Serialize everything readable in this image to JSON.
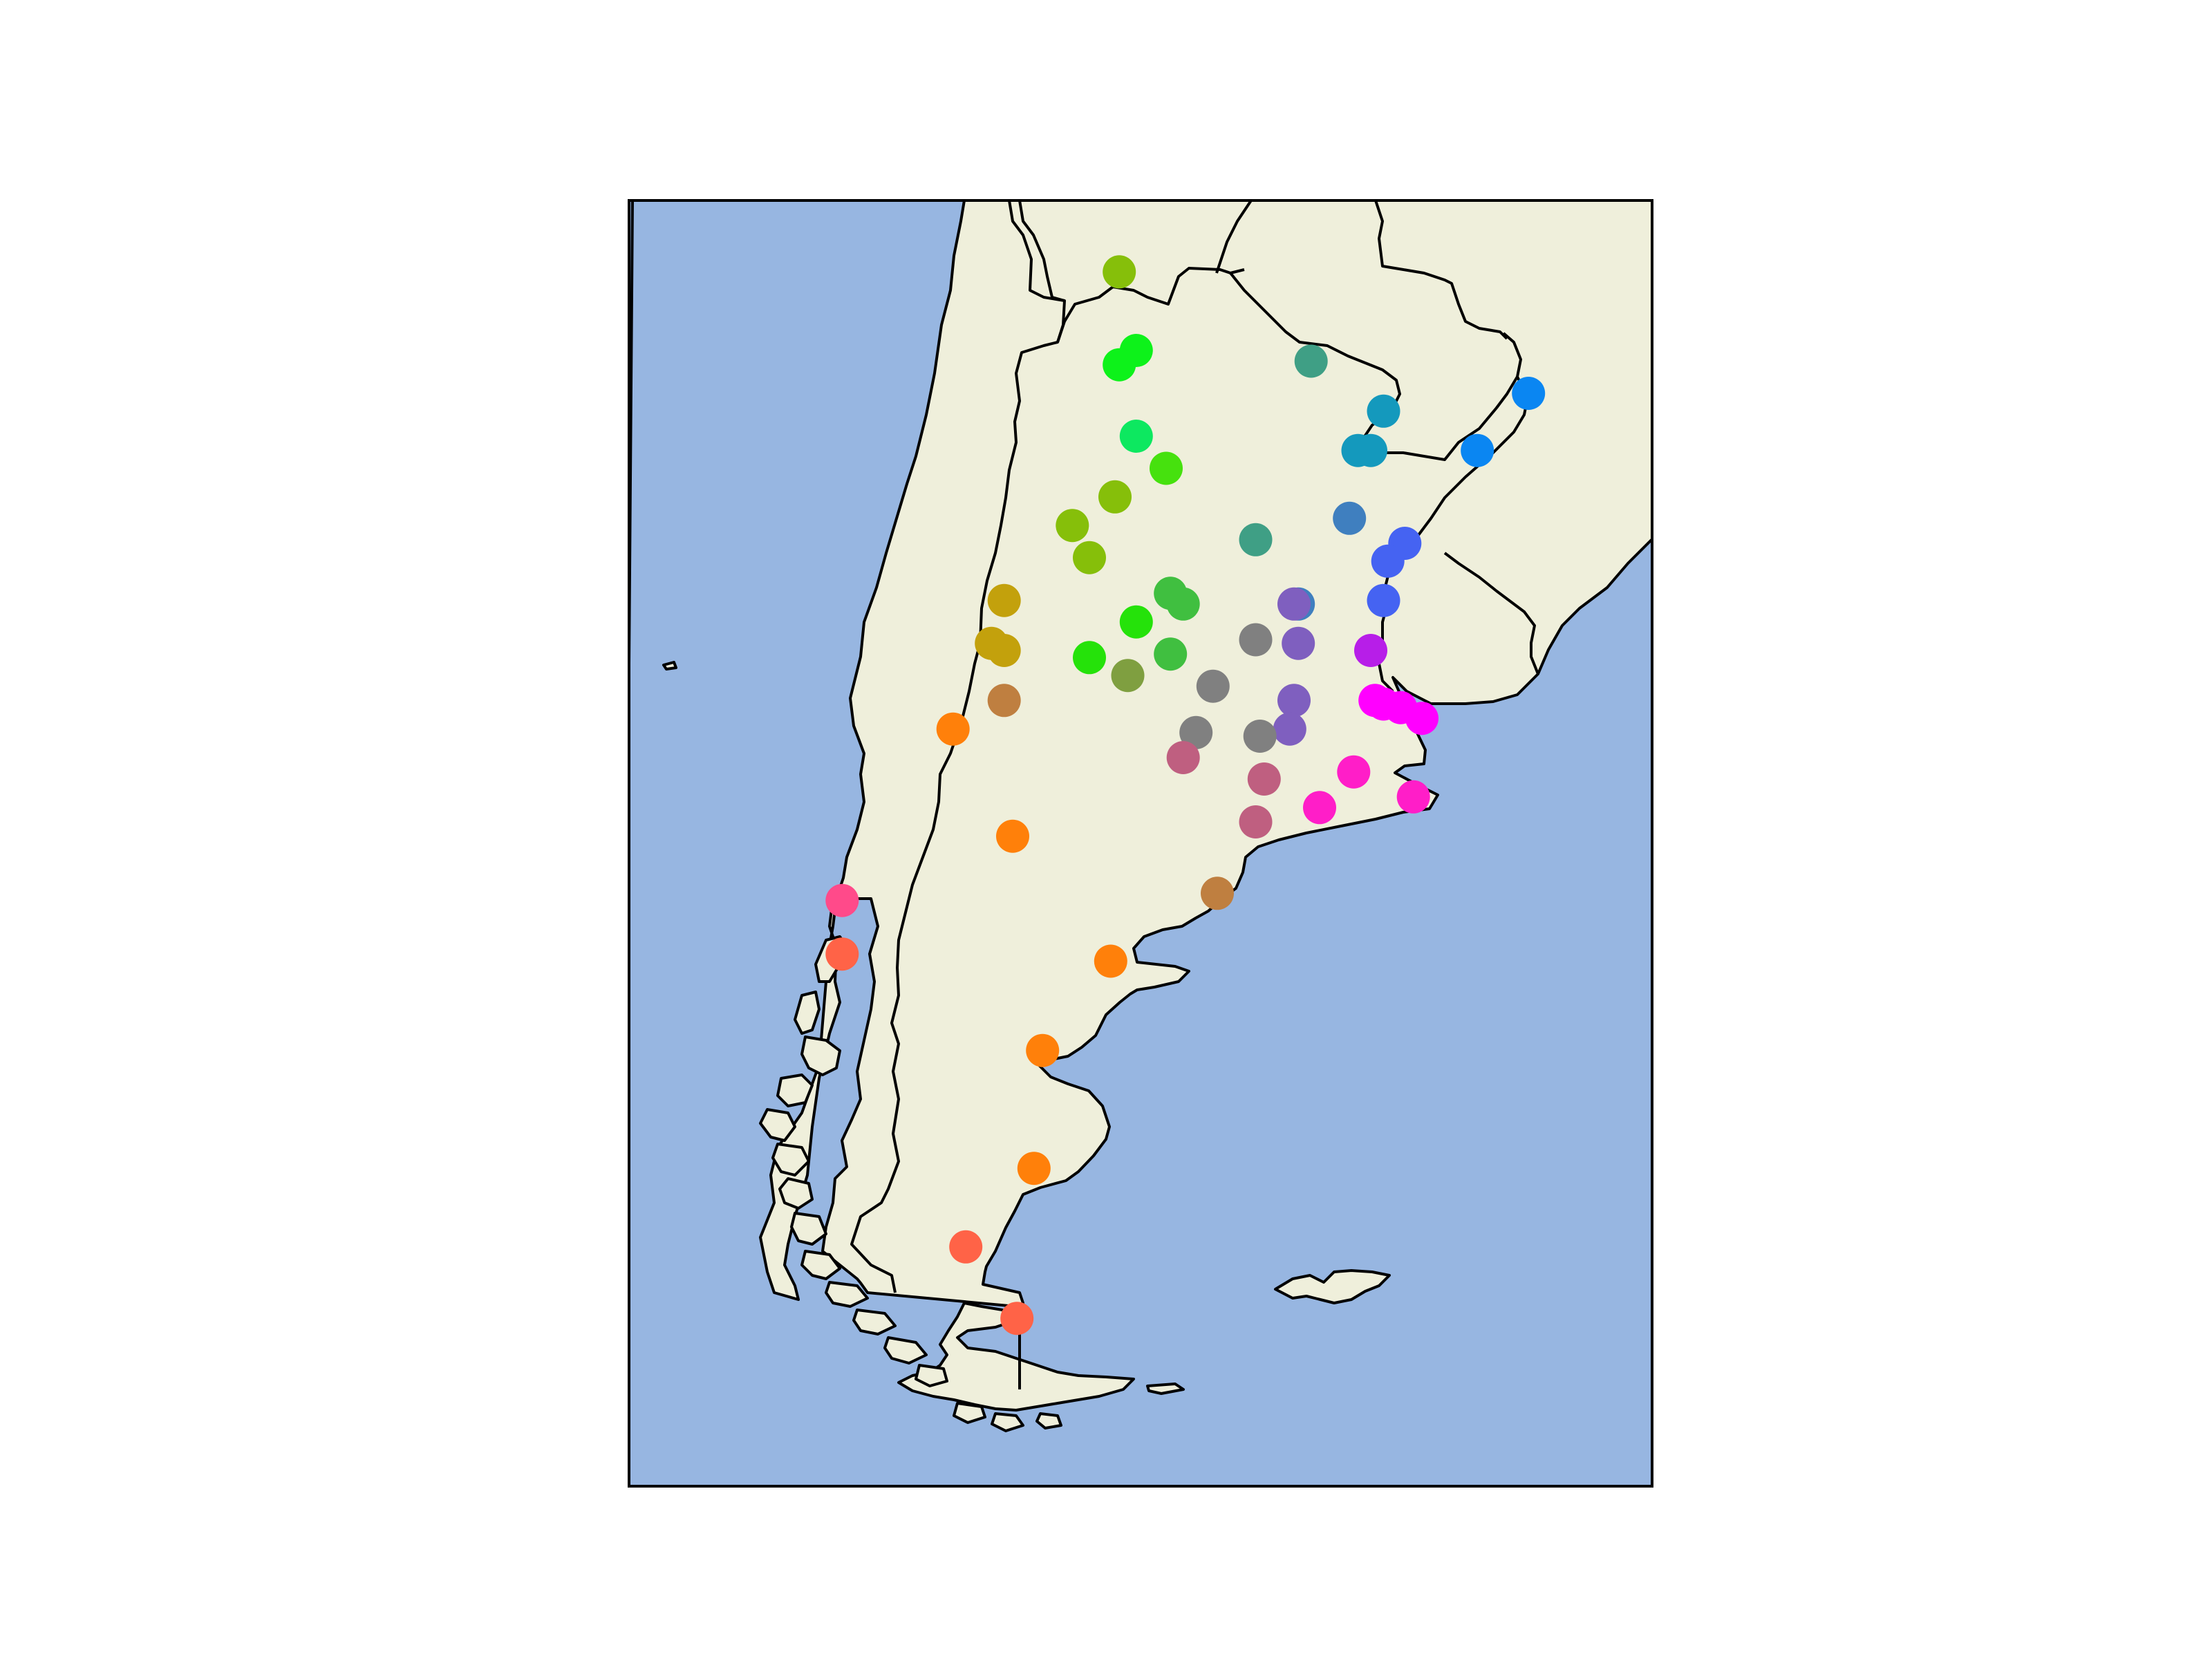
{
  "map": {
    "projection": "PlateCarree",
    "extent_lon": [
      -76,
      -52
    ],
    "extent_lat": [
      -57,
      -21
    ],
    "colors": {
      "ocean": "#97b6e1",
      "land": "#efefdb",
      "coastline": "#000000",
      "frame": "#000000"
    },
    "stations": [
      {
        "lon": -64.5,
        "lat": -23.0,
        "color": "#86bf0a"
      },
      {
        "lon": -64.1,
        "lat": -25.2,
        "color": "#0df21a"
      },
      {
        "lon": -64.5,
        "lat": -25.6,
        "color": "#0df21a"
      },
      {
        "lon": -60.0,
        "lat": -25.5,
        "color": "#3f9f85"
      },
      {
        "lon": -64.1,
        "lat": -27.6,
        "color": "#0de860"
      },
      {
        "lon": -63.4,
        "lat": -28.5,
        "color": "#46e10e"
      },
      {
        "lon": -64.6,
        "lat": -29.3,
        "color": "#86bf0a"
      },
      {
        "lon": -65.6,
        "lat": -30.1,
        "color": "#86bf0a"
      },
      {
        "lon": -65.2,
        "lat": -31.0,
        "color": "#86bf0a"
      },
      {
        "lon": -61.3,
        "lat": -30.5,
        "color": "#3f9f85"
      },
      {
        "lon": -58.3,
        "lat": -26.9,
        "color": "#1499bd"
      },
      {
        "lon": -58.6,
        "lat": -28.0,
        "color": "#1499bd"
      },
      {
        "lon": -58.9,
        "lat": -28.0,
        "color": "#1499bd"
      },
      {
        "lon": -56.1,
        "lat": -28.0,
        "color": "#0a86f2"
      },
      {
        "lon": -54.9,
        "lat": -26.4,
        "color": "#0a86f2"
      },
      {
        "lon": -59.1,
        "lat": -29.9,
        "color": "#3f7fbf"
      },
      {
        "lon": -57.8,
        "lat": -30.6,
        "color": "#4563f2"
      },
      {
        "lon": -58.2,
        "lat": -31.1,
        "color": "#4563f2"
      },
      {
        "lon": -58.3,
        "lat": -32.2,
        "color": "#4563f2"
      },
      {
        "lon": -67.2,
        "lat": -32.2,
        "color": "#c3a10c"
      },
      {
        "lon": -67.5,
        "lat": -33.4,
        "color": "#c3a10c"
      },
      {
        "lon": -67.2,
        "lat": -33.6,
        "color": "#c3a10c"
      },
      {
        "lon": -64.1,
        "lat": -32.8,
        "color": "#25e20a"
      },
      {
        "lon": -63.3,
        "lat": -32.0,
        "color": "#40bf40"
      },
      {
        "lon": -63.0,
        "lat": -32.3,
        "color": "#40bf40"
      },
      {
        "lon": -63.3,
        "lat": -33.7,
        "color": "#40bf40"
      },
      {
        "lon": -65.2,
        "lat": -33.8,
        "color": "#25e20a"
      },
      {
        "lon": -64.3,
        "lat": -34.3,
        "color": "#7f9f40"
      },
      {
        "lon": -61.3,
        "lat": -33.3,
        "color": "#808080"
      },
      {
        "lon": -60.3,
        "lat": -32.3,
        "color": "#3f7fbf"
      },
      {
        "lon": -60.4,
        "lat": -32.3,
        "color": "#7f5fbf"
      },
      {
        "lon": -60.3,
        "lat": -33.4,
        "color": "#7f5fbf"
      },
      {
        "lon": -58.6,
        "lat": -33.6,
        "color": "#b71ee8"
      },
      {
        "lon": -67.2,
        "lat": -35.0,
        "color": "#bf7f40"
      },
      {
        "lon": -62.3,
        "lat": -34.6,
        "color": "#808080"
      },
      {
        "lon": -60.4,
        "lat": -35.0,
        "color": "#7f5fbf"
      },
      {
        "lon": -60.5,
        "lat": -35.8,
        "color": "#7f5fbf"
      },
      {
        "lon": -58.5,
        "lat": -35.0,
        "color": "#ff00ff"
      },
      {
        "lon": -58.3,
        "lat": -35.1,
        "color": "#ff00ff"
      },
      {
        "lon": -57.9,
        "lat": -35.2,
        "color": "#ff00ff"
      },
      {
        "lon": -57.4,
        "lat": -35.5,
        "color": "#ff00ff"
      },
      {
        "lon": -68.4,
        "lat": -35.8,
        "color": "#ff800a"
      },
      {
        "lon": -62.7,
        "lat": -35.9,
        "color": "#808080"
      },
      {
        "lon": -61.2,
        "lat": -36.0,
        "color": "#808080"
      },
      {
        "lon": -63.0,
        "lat": -36.6,
        "color": "#bf5f80"
      },
      {
        "lon": -61.1,
        "lat": -37.2,
        "color": "#bf5f80"
      },
      {
        "lon": -59.0,
        "lat": -37.0,
        "color": "#ff1ec8"
      },
      {
        "lon": -59.8,
        "lat": -38.0,
        "color": "#ff1ec8"
      },
      {
        "lon": -57.6,
        "lat": -37.7,
        "color": "#ff1ec8"
      },
      {
        "lon": -61.3,
        "lat": -38.4,
        "color": "#bf5f80"
      },
      {
        "lon": -67.0,
        "lat": -38.8,
        "color": "#ff800a"
      },
      {
        "lon": -62.2,
        "lat": -40.4,
        "color": "#bf7f40"
      },
      {
        "lon": -71.0,
        "lat": -40.6,
        "color": "#ff4a8a"
      },
      {
        "lon": -71.0,
        "lat": -42.1,
        "color": "#ff6347"
      },
      {
        "lon": -64.7,
        "lat": -42.3,
        "color": "#ff800a"
      },
      {
        "lon": -66.3,
        "lat": -44.8,
        "color": "#ff800a"
      },
      {
        "lon": -66.5,
        "lat": -48.1,
        "color": "#ff800a"
      },
      {
        "lon": -68.1,
        "lat": -50.3,
        "color": "#ff6347"
      },
      {
        "lon": -66.9,
        "lat": -52.3,
        "color": "#ff6347"
      }
    ]
  }
}
